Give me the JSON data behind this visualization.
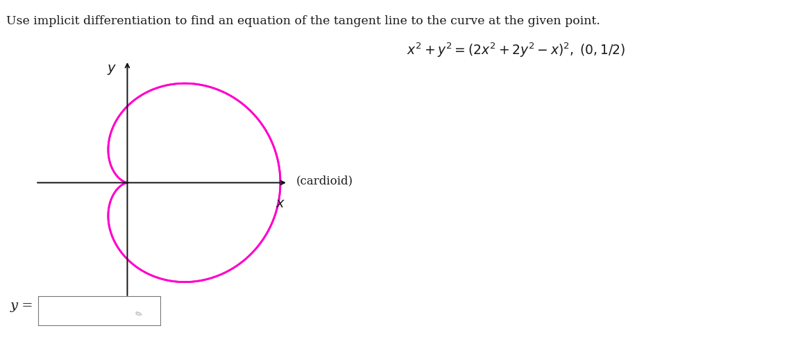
{
  "title_text": "Use implicit differentiation to find an equation of the tangent line to the curve at the given point.",
  "equation_text": "$x^2 + y^2 = (2x^2 + 2y^2 - x)^2, \\; (0, 1/2)$",
  "cardioid_label": "(cardioid)",
  "answer_label": "y =",
  "curve_color": "#FF00CC",
  "curve_linewidth": 2.0,
  "axis_color": "#111111",
  "text_color": "#1a1a1a",
  "background_color": "#ffffff",
  "title_fontsize": 12.5,
  "equation_fontsize": 13.5,
  "axis_label_fontsize": 14,
  "cardioid_fontsize": 12,
  "answer_fontsize": 14
}
